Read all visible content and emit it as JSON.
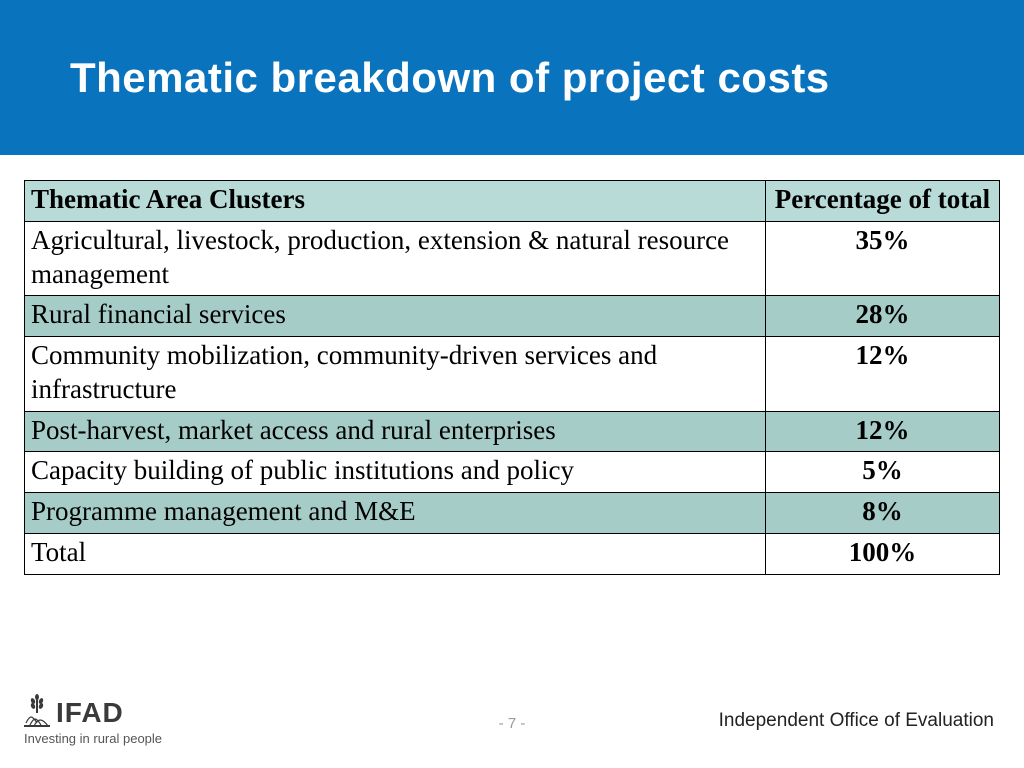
{
  "title": "Thematic breakdown of project costs",
  "title_band_color": "#0a73bd",
  "table": {
    "type": "table",
    "header_bg": "#b8dbd8",
    "row_alt_bg": "#a6ccc8",
    "row_bg": "#ffffff",
    "border_color": "#000000",
    "font_size": 27,
    "columns": [
      {
        "label": "Thematic Area Clusters",
        "align": "left",
        "width_pct": 76
      },
      {
        "label": "Percentage of total",
        "align": "center",
        "width_pct": 24
      }
    ],
    "rows": [
      {
        "area": "Agricultural, livestock, production,  extension & natural resource management",
        "pct": "35%",
        "bg": "#ffffff"
      },
      {
        "area": "Rural financial services",
        "pct": "28%",
        "bg": "#a6ccc8"
      },
      {
        "area": "Community mobilization, community-driven services and infrastructure",
        "pct": "12%",
        "bg": "#ffffff"
      },
      {
        "area": "Post-harvest, market access and rural enterprises",
        "pct": "12%",
        "bg": "#a6ccc8"
      },
      {
        "area": "Capacity building of public institutions and policy",
        "pct": "5%",
        "bg": "#ffffff"
      },
      {
        "area": "Programme management and M&E",
        "pct": "8%",
        "bg": "#a6ccc8"
      },
      {
        "area": "Total",
        "pct": "100%",
        "bg": "#ffffff"
      }
    ]
  },
  "footer": {
    "logo_word": "IFAD",
    "logo_tag": "Investing in rural people",
    "logo_color": "#3a3a3a",
    "page_number": "- 7 -",
    "office": "Independent Office of Evaluation"
  }
}
